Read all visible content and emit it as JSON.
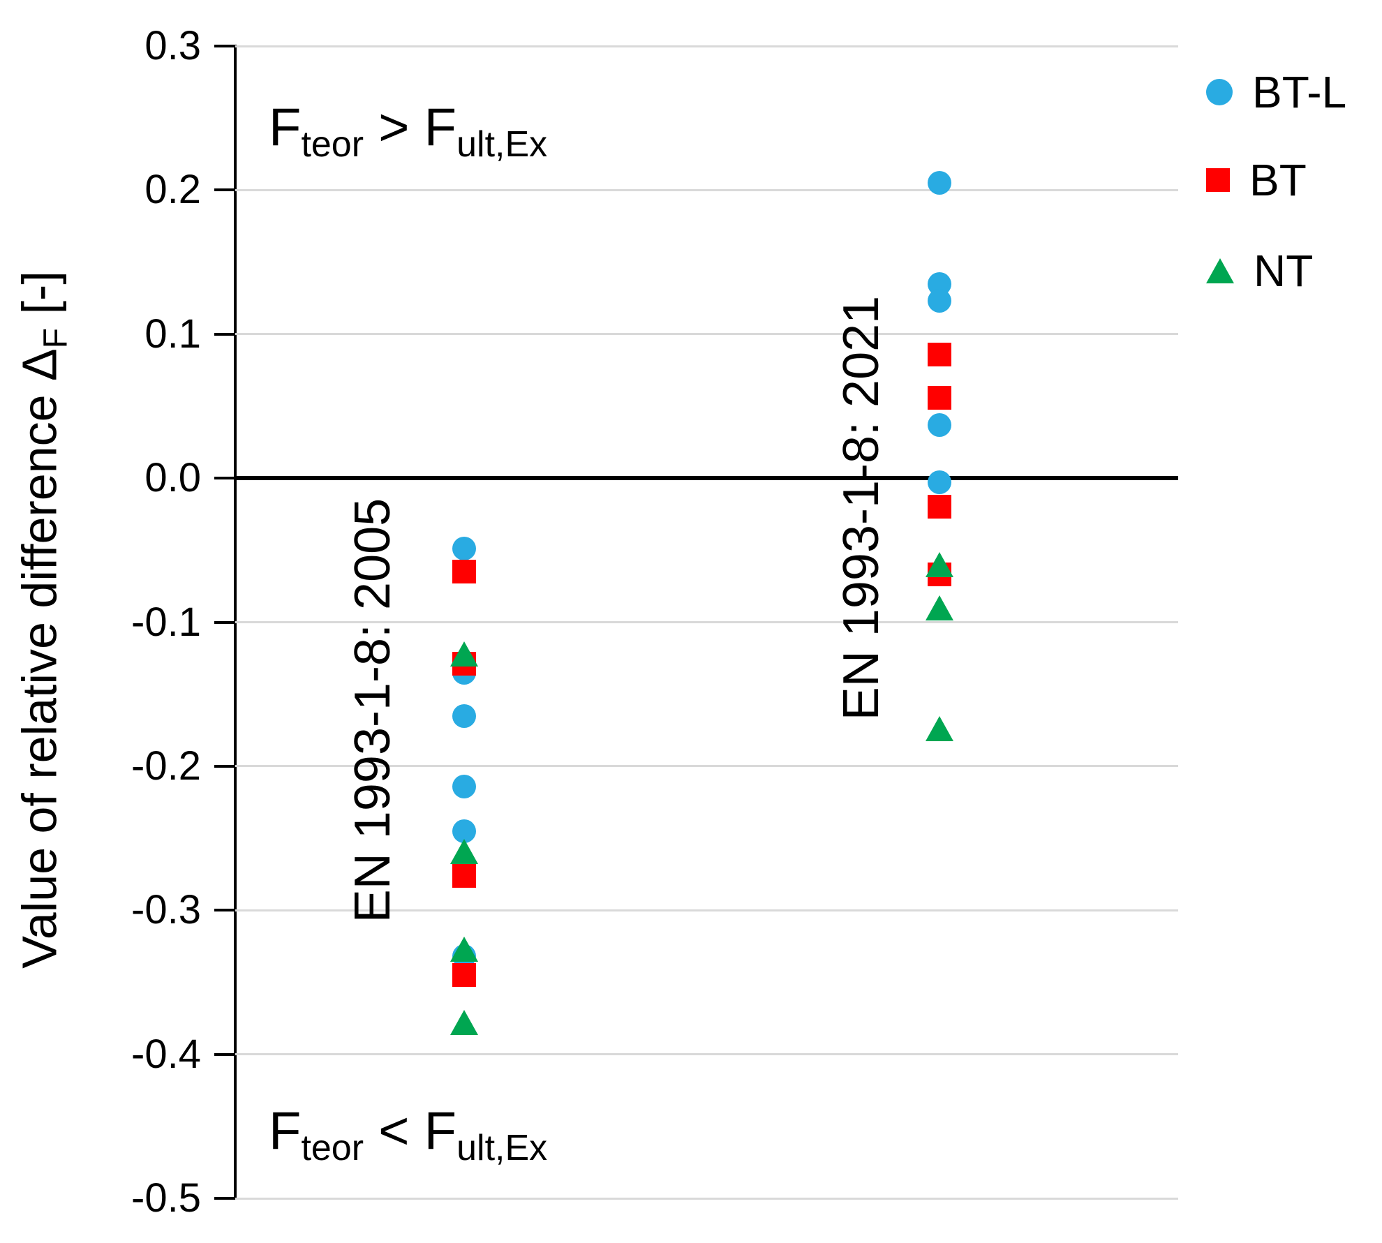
{
  "chart_data": {
    "type": "scatter",
    "ylabel_parts": {
      "prefix": "Value of relative difference Δ",
      "sub": "F",
      "suffix": " [-]"
    },
    "ylim": [
      -0.5,
      0.3
    ],
    "yticks": [
      0.3,
      0.2,
      0.1,
      0.0,
      -0.1,
      -0.2,
      -0.3,
      -0.4,
      -0.5
    ],
    "ytick_labels": [
      "0.3",
      "0.2",
      "0.1",
      "0.0",
      "-0.1",
      "-0.2",
      "-0.3",
      "-0.4",
      "-0.5"
    ],
    "grid": "horizontal-light-gray",
    "gridline_color": "#d9d9d9",
    "zero_line_color": "#000000",
    "background_color": "#ffffff",
    "categories": [
      "EN 1993-1-8: 2005",
      "EN 1993-1-8: 2021"
    ],
    "series": [
      {
        "name": "BT-L",
        "marker": "circle",
        "color": "#29ABE2",
        "points": [
          {
            "group": 0,
            "values": [
              -0.049,
              -0.135,
              -0.165,
              -0.214,
              -0.245,
              -0.332
            ]
          },
          {
            "group": 1,
            "values": [
              0.205,
              0.135,
              0.123,
              0.037,
              -0.003
            ]
          }
        ]
      },
      {
        "name": "BT",
        "marker": "square",
        "color": "#FF0000",
        "points": [
          {
            "group": 0,
            "values": [
              -0.065,
              -0.129,
              -0.276,
              -0.345
            ]
          },
          {
            "group": 1,
            "values": [
              0.086,
              0.056,
              -0.02,
              -0.067
            ]
          }
        ]
      },
      {
        "name": "NT",
        "marker": "triangle",
        "color": "#00A651",
        "points": [
          {
            "group": 0,
            "values": [
              -0.122,
              -0.259,
              -0.327,
              -0.378
            ]
          },
          {
            "group": 1,
            "values": [
              -0.06,
              -0.09,
              -0.174
            ]
          }
        ]
      }
    ],
    "annotations": [
      {
        "f1": "F",
        "sub1": "teor",
        "op": " > ",
        "f2": "F",
        "sub2": "ult,Ex"
      },
      {
        "f1": "F",
        "sub1": "teor",
        "op": " < ",
        "f2": "F",
        "sub2": "ult,Ex"
      }
    ],
    "legend": {
      "position": "top-right",
      "items": [
        "BT-L",
        "BT",
        "NT"
      ]
    }
  }
}
